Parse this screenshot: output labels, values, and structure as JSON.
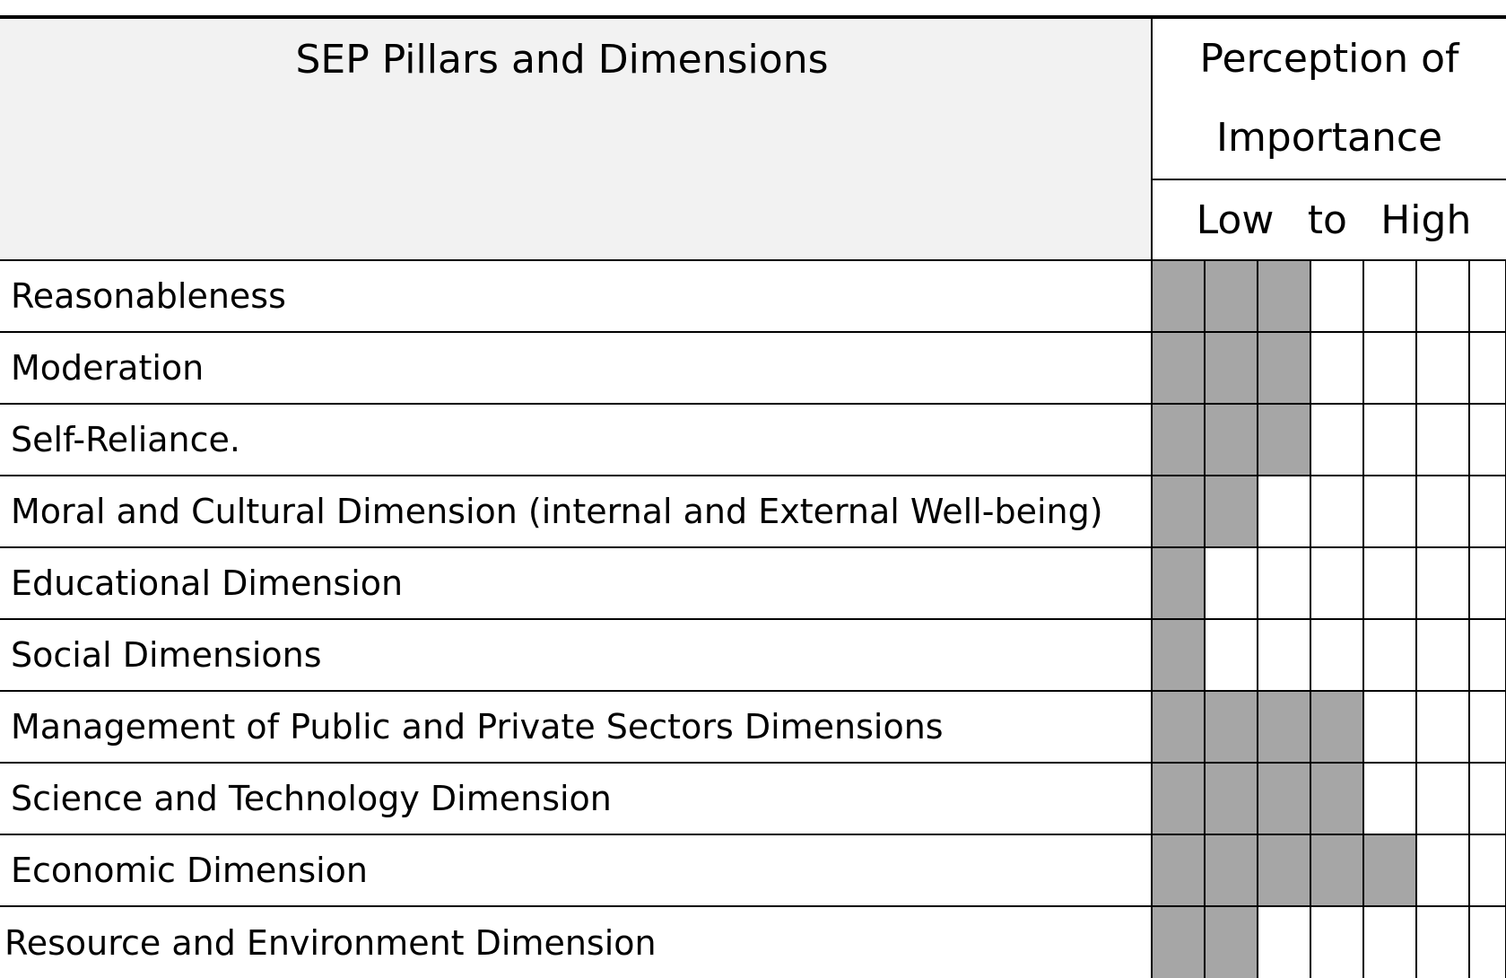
{
  "header": {
    "title": "SEP Pillars and Dimensions",
    "perception_line1": "Perception of",
    "perception_line2": "Importance",
    "scale_low": "Low",
    "scale_to": "to",
    "scale_high": "High"
  },
  "scale_columns": 7,
  "rows": [
    {
      "label": "Reasonableness",
      "level": 3
    },
    {
      "label": "Moderation",
      "level": 3
    },
    {
      "label": "Self-Reliance.",
      "level": 3
    },
    {
      "label": "Moral and Cultural Dimension (internal and External Well-being)",
      "level": 2
    },
    {
      "label": "Educational Dimension",
      "level": 1
    },
    {
      "label": "Social Dimensions",
      "level": 1
    },
    {
      "label": "Management of Public and Private Sectors Dimensions",
      "level": 4
    },
    {
      "label": "Science and Technology Dimension",
      "level": 4
    },
    {
      "label": "Economic Dimension",
      "level": 5
    },
    {
      "label": "Resource and Environment Dimension",
      "level": 2
    }
  ],
  "colors": {
    "header_background": "#f2f2f2",
    "filled_cell": "#a6a6a6",
    "border": "#000000"
  }
}
